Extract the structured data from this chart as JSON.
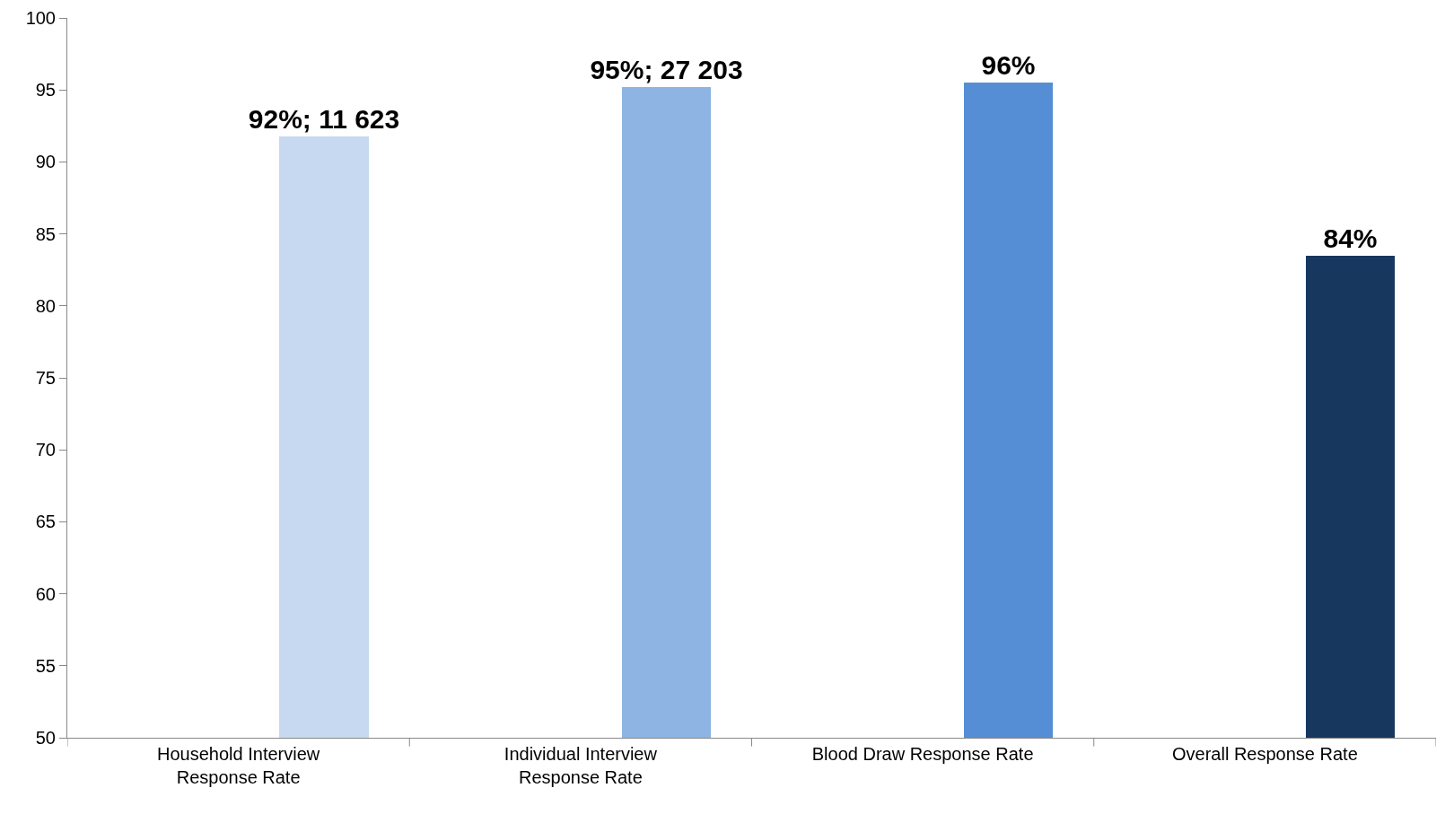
{
  "chart_data": {
    "type": "bar",
    "categories": [
      "Household Interview\nResponse Rate",
      "Individual Interview\nResponse Rate",
      "Blood Draw Response Rate",
      "Overall Response Rate"
    ],
    "values": [
      91.8,
      95.2,
      95.5,
      83.5
    ],
    "colors": [
      "#c6d9f1",
      "#8eb4e3",
      "#558ed5",
      "#17375e"
    ],
    "value_labels": [
      "92%; 11 623",
      "95%; 27 203",
      "96%",
      "84%"
    ],
    "ylim": [
      50,
      100
    ],
    "yticks": [
      50,
      55,
      60,
      65,
      70,
      75,
      80,
      85,
      90,
      95,
      100
    ]
  }
}
